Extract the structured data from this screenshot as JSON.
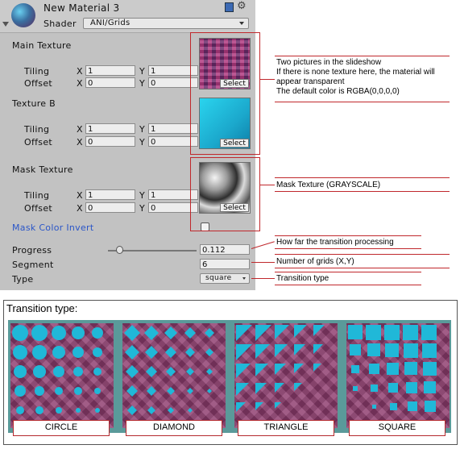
{
  "material": {
    "name": "New Material 3",
    "shader_label": "Shader",
    "shader_value": "ANI/Grids"
  },
  "main_texture": {
    "label": "Main Texture",
    "tiling_label": "Tiling",
    "offset_label": "Offset",
    "tx": "1",
    "ty": "1",
    "ox": "0",
    "oy": "0",
    "select": "Select"
  },
  "texture_b": {
    "label": "Texture B",
    "tiling_label": "Tiling",
    "offset_label": "Offset",
    "tx": "1",
    "ty": "1",
    "ox": "0",
    "oy": "0",
    "select": "Select"
  },
  "mask_texture": {
    "label": "Mask Texture",
    "tiling_label": "Tiling",
    "offset_label": "Offset",
    "tx": "1",
    "ty": "1",
    "ox": "0",
    "oy": "0",
    "select": "Select"
  },
  "axis": {
    "x": "X",
    "y": "Y"
  },
  "mask_invert": {
    "label": "Mask Color Invert",
    "checked": false
  },
  "progress": {
    "label": "Progress",
    "value": "0.112",
    "slider_fraction": 0.112
  },
  "segment": {
    "label": "Segment",
    "value": "6"
  },
  "type": {
    "label": "Type",
    "value": "square"
  },
  "callouts": {
    "slideshow_1": "Two pictures in the slideshow",
    "slideshow_2": "If there is none texture here, the material will",
    "slideshow_3": "appear transparent",
    "slideshow_4": "The default color is RGBA(0,0,0,0)",
    "mask": "Mask Texture (GRAYSCALE)",
    "progress": "How far the transition processing",
    "segment": "Number of grids (X,Y)",
    "type": "Transition type"
  },
  "transition": {
    "title": "Transition type:",
    "types": [
      "CIRCLE",
      "DIAMOND",
      "TRIANGLE",
      "SQUARE"
    ]
  },
  "colors": {
    "accent": "#c0282c",
    "teal": "#20b8d8",
    "magenta": "#8e3c6e"
  }
}
